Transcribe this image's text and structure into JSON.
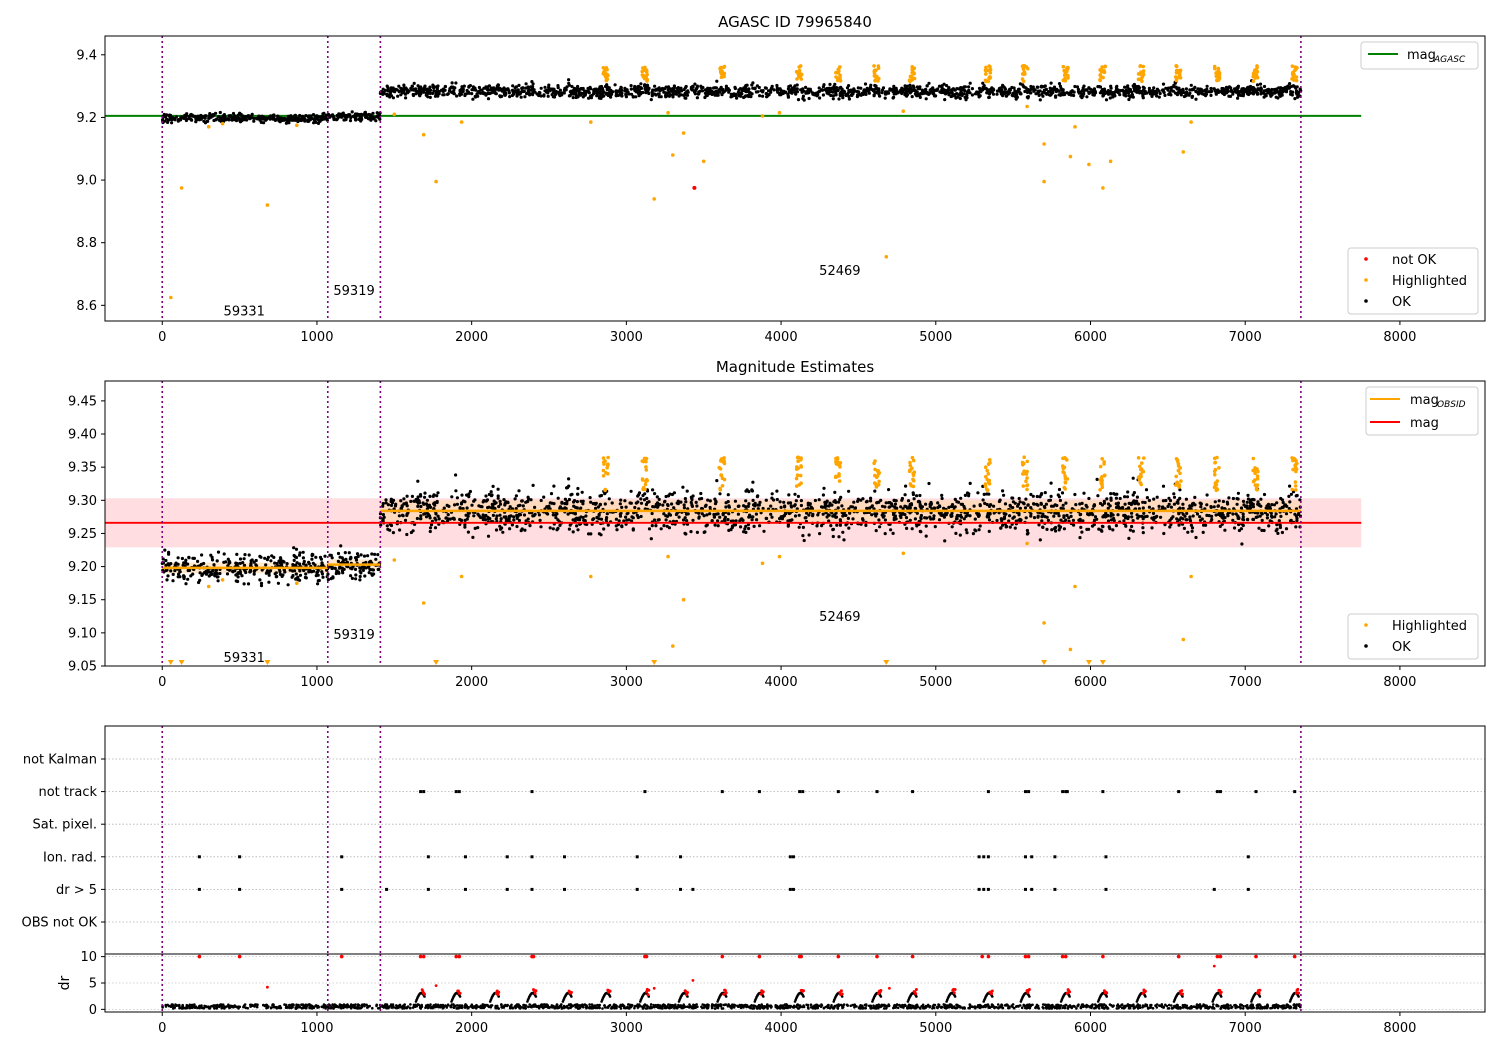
{
  "chart_data": [
    {
      "type": "scatter",
      "title": "AGASC ID 79965840",
      "xlabel": "",
      "ylabel": "",
      "xlim": [
        -370,
        8550
      ],
      "ylim": [
        8.55,
        9.46
      ],
      "x_ticks": [
        0,
        1000,
        2000,
        3000,
        4000,
        5000,
        6000,
        7000,
        8000
      ],
      "y_ticks": [
        8.6,
        8.8,
        9.0,
        9.2,
        9.4
      ],
      "y_tick_decimals": 1,
      "grid": false,
      "reference_line": {
        "name": "mag",
        "subscript": "AGASC",
        "y": 9.205,
        "x_range": [
          -370,
          7750
        ],
        "color": "#008000"
      },
      "obsid_boundaries": [
        0,
        1070,
        1410,
        7360
      ],
      "obsid_labels": [
        {
          "text": "59331",
          "x": 530,
          "y": 8.58
        },
        {
          "text": "59319",
          "x": 1240,
          "y": 8.645
        },
        {
          "text": "52469",
          "x": 4380,
          "y": 8.71
        }
      ],
      "legend_main": {
        "placement": "top-right",
        "entries": [
          {
            "name": "mag",
            "subscript": "AGASC",
            "color": "#008000"
          }
        ]
      },
      "legend_points": {
        "placement": "bottom-right",
        "entries": [
          {
            "name": "not OK",
            "color": "#ff0000"
          },
          {
            "name": "Highlighted",
            "color": "#ffa500"
          },
          {
            "name": "OK",
            "color": "#000000"
          }
        ]
      },
      "segments": [
        {
          "x_range": [
            0,
            1070
          ],
          "mean": 9.198,
          "scatter": 0.012
        },
        {
          "x_range": [
            1070,
            1410
          ],
          "mean": 9.203,
          "scatter": 0.012
        },
        {
          "x_range": [
            1410,
            7360
          ],
          "mean": 9.282,
          "scatter": 0.018
        }
      ],
      "highlighted_clusters": [
        2870,
        3120,
        3620,
        4120,
        4370,
        4620,
        4850,
        5340,
        5580,
        5840,
        6080,
        6330,
        6570,
        6820,
        7070,
        7320
      ],
      "outliers_highlighted": [
        {
          "x": 55,
          "y": 8.625
        },
        {
          "x": 125,
          "y": 8.975
        },
        {
          "x": 680,
          "y": 8.92
        },
        {
          "x": 300,
          "y": 9.17
        },
        {
          "x": 390,
          "y": 9.18
        },
        {
          "x": 870,
          "y": 9.175
        },
        {
          "x": 1500,
          "y": 9.21
        },
        {
          "x": 1690,
          "y": 9.145
        },
        {
          "x": 1770,
          "y": 8.995
        },
        {
          "x": 1935,
          "y": 9.185
        },
        {
          "x": 2770,
          "y": 9.185
        },
        {
          "x": 3180,
          "y": 8.94
        },
        {
          "x": 3270,
          "y": 9.215
        },
        {
          "x": 3300,
          "y": 9.08
        },
        {
          "x": 3370,
          "y": 9.15
        },
        {
          "x": 3500,
          "y": 9.06
        },
        {
          "x": 3880,
          "y": 9.205
        },
        {
          "x": 3990,
          "y": 9.215
        },
        {
          "x": 4680,
          "y": 8.755
        },
        {
          "x": 4790,
          "y": 9.22
        },
        {
          "x": 5590,
          "y": 9.235
        },
        {
          "x": 5700,
          "y": 8.995
        },
        {
          "x": 5700,
          "y": 9.115
        },
        {
          "x": 5870,
          "y": 9.075
        },
        {
          "x": 5900,
          "y": 9.17
        },
        {
          "x": 5990,
          "y": 9.05
        },
        {
          "x": 6080,
          "y": 8.975
        },
        {
          "x": 6130,
          "y": 9.06
        },
        {
          "x": 6600,
          "y": 9.09
        },
        {
          "x": 6650,
          "y": 9.185
        }
      ],
      "outliers_not_ok": [
        {
          "x": 3440,
          "y": 8.975
        }
      ]
    },
    {
      "type": "scatter",
      "title": "Magnitude Estimates",
      "xlabel": "",
      "ylabel": "",
      "xlim": [
        -370,
        8550
      ],
      "ylim": [
        9.05,
        9.48
      ],
      "x_ticks": [
        0,
        1000,
        2000,
        3000,
        4000,
        5000,
        6000,
        7000,
        8000
      ],
      "y_ticks": [
        9.05,
        9.1,
        9.15,
        9.2,
        9.25,
        9.3,
        9.35,
        9.4,
        9.45
      ],
      "y_tick_decimals": 2,
      "grid": false,
      "mag_line": {
        "name": "mag",
        "y": 9.266,
        "band": [
          9.229,
          9.303
        ],
        "x_range": [
          -370,
          7750
        ],
        "color": "#ff0000",
        "band_color": "#ffdde0"
      },
      "obsid_mag_lines": [
        {
          "x_range": [
            0,
            1070
          ],
          "y": 9.198,
          "band": [
            9.19,
            9.206
          ]
        },
        {
          "x_range": [
            1070,
            1410
          ],
          "y": 9.203,
          "band": [
            9.195,
            9.211
          ]
        },
        {
          "x_range": [
            1410,
            7360
          ],
          "y": 9.284,
          "band": [
            9.268,
            9.3
          ]
        }
      ],
      "obsid_boundaries": [
        0,
        1070,
        1410,
        7360
      ],
      "obsid_labels": [
        {
          "text": "59331",
          "x": 530,
          "y": 9.062
        },
        {
          "text": "59319",
          "x": 1240,
          "y": 9.097
        },
        {
          "text": "52469",
          "x": 4380,
          "y": 9.124
        }
      ],
      "legend_main": {
        "placement": "top-right",
        "entries": [
          {
            "name": "mag",
            "subscript": "OBSID",
            "color": "#ffa500"
          },
          {
            "name": "mag",
            "subscript": "",
            "color": "#ff0000"
          }
        ]
      },
      "legend_points": {
        "placement": "bottom-right",
        "entries": [
          {
            "name": "Highlighted",
            "color": "#ffa500"
          },
          {
            "name": "OK",
            "color": "#000000"
          }
        ]
      },
      "clipped_markers_x": [
        55,
        125,
        680,
        1770,
        3180,
        4680,
        5700,
        5990,
        6080
      ]
    },
    {
      "type": "scatter",
      "title": "",
      "xlabel": "",
      "ylabel": "",
      "xlim": [
        -370,
        8550
      ],
      "categories": [
        "not Kalman",
        "not track",
        "Sat. pixel.",
        "Ion. rad.",
        "dr > 5",
        "OBS not OK"
      ],
      "obsid_boundaries": [
        0,
        1070,
        1410,
        7360
      ],
      "flags": {
        "not track": [
          1670,
          1690,
          1900,
          1920,
          2390,
          3120,
          3620,
          3860,
          4120,
          4140,
          4370,
          4620,
          4850,
          5340,
          5580,
          5600,
          5820,
          5840,
          5850,
          6080,
          6570,
          6820,
          6840,
          7070,
          7320
        ],
        "Ion. rad.": [
          240,
          500,
          1160,
          1720,
          1960,
          2230,
          2390,
          2600,
          3070,
          3350,
          4060,
          4080,
          5280,
          5310,
          5340,
          5580,
          5620,
          5770,
          6100,
          7020
        ],
        "dr > 5": [
          240,
          500,
          1160,
          1450,
          1720,
          1960,
          2230,
          2390,
          2600,
          3070,
          3350,
          3430,
          4060,
          4080,
          5280,
          5310,
          5340,
          5580,
          5620,
          5770,
          6100,
          6800,
          7020
        ]
      }
    },
    {
      "type": "scatter",
      "title": "",
      "xlabel": "",
      "ylabel": "dr",
      "xlim": [
        -370,
        8550
      ],
      "ylim": [
        -0.5,
        10.5
      ],
      "x_ticks": [
        0,
        1000,
        2000,
        3000,
        4000,
        5000,
        6000,
        7000,
        8000
      ],
      "y_ticks": [
        0,
        5,
        10
      ],
      "obsid_boundaries": [
        0,
        1070,
        1410,
        7360
      ],
      "dr_clipped_x": [
        240,
        500,
        1160,
        1670,
        1690,
        1900,
        1920,
        2390,
        2400,
        3120,
        3130,
        3620,
        3860,
        4120,
        4130,
        4370,
        4620,
        4850,
        5300,
        5340,
        5580,
        5600,
        5820,
        5840,
        6080,
        6570,
        6820,
        6840,
        7070,
        7320
      ],
      "dr_outliers": [
        {
          "x": 680,
          "y": 4.2
        },
        {
          "x": 1770,
          "y": 4.5
        },
        {
          "x": 3430,
          "y": 5.5
        },
        {
          "x": 6800,
          "y": 8.2
        },
        {
          "x": 3180,
          "y": 4.0
        },
        {
          "x": 4700,
          "y": 4.0
        }
      ],
      "arc_clusters": [
        1670,
        1900,
        2150,
        2390,
        2620,
        2870,
        3120,
        3370,
        3620,
        3860,
        4120,
        4370,
        4620,
        4850,
        5100,
        5340,
        5580,
        5840,
        6080,
        6330,
        6570,
        6820,
        7070,
        7320
      ]
    }
  ]
}
